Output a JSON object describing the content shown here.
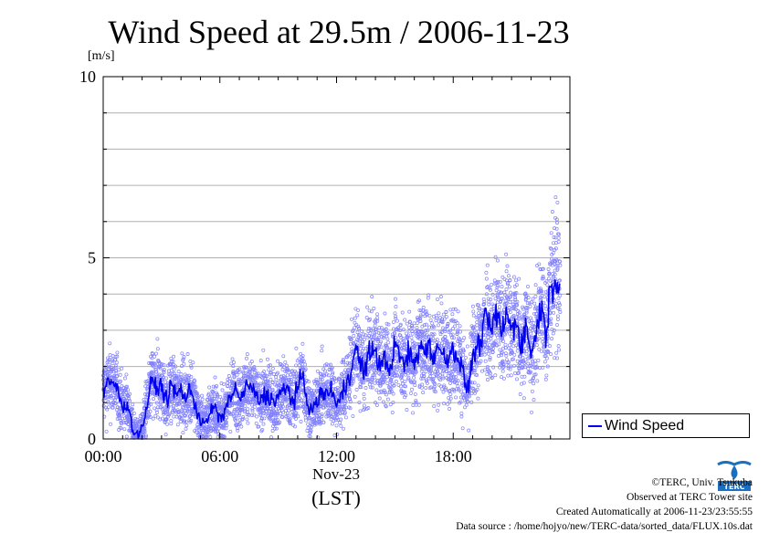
{
  "chart_data": {
    "type": "line",
    "title": "Wind Speed at 29.5m / 2006-11-23",
    "y_unit": "[m/s]",
    "ylim": [
      0,
      10
    ],
    "y_ticks": [
      "0",
      "5",
      "10"
    ],
    "xlim": [
      0,
      24
    ],
    "x_ticks": [
      {
        "v": 0,
        "label": "00:00"
      },
      {
        "v": 6,
        "label": "06:00"
      },
      {
        "v": 12,
        "label": "12:00"
      },
      {
        "v": 18,
        "label": "18:00"
      }
    ],
    "x_date_label": "Nov-23",
    "x_axis_label": "(LST)",
    "grid": true,
    "legend_position": "right",
    "series": [
      {
        "name": "Wind Speed",
        "color": "#0000ee",
        "scatter_color": "#8080ff",
        "x": [
          0,
          0.25,
          0.5,
          0.75,
          1.0,
          1.25,
          1.5,
          1.75,
          2.0,
          2.25,
          2.5,
          2.75,
          3.0,
          3.25,
          3.5,
          3.75,
          4.0,
          4.25,
          4.5,
          4.75,
          5.0,
          5.25,
          5.5,
          5.75,
          6.0,
          6.25,
          6.5,
          6.75,
          7.0,
          7.25,
          7.5,
          7.75,
          8.0,
          8.25,
          8.5,
          8.75,
          9.0,
          9.25,
          9.5,
          9.75,
          10.0,
          10.25,
          10.5,
          10.75,
          11.0,
          11.25,
          11.5,
          11.75,
          12.0,
          12.25,
          12.5,
          12.75,
          13.0,
          13.25,
          13.5,
          13.75,
          14.0,
          14.25,
          14.5,
          14.75,
          15.0,
          15.25,
          15.5,
          15.75,
          16.0,
          16.25,
          16.5,
          16.75,
          17.0,
          17.25,
          17.5,
          17.75,
          18.0,
          18.25,
          18.5,
          18.75,
          19.0,
          19.25,
          19.5,
          19.75,
          20.0,
          20.25,
          20.5,
          20.75,
          21.0,
          21.25,
          21.5,
          21.75,
          22.0,
          22.25,
          22.5,
          22.75,
          23.0,
          23.25,
          23.5
        ],
        "values": [
          1.3,
          1.5,
          1.6,
          1.3,
          0.9,
          1.0,
          0.3,
          0.1,
          0.3,
          0.9,
          1.6,
          1.4,
          1.5,
          1.0,
          1.5,
          1.2,
          1.4,
          1.1,
          1.4,
          0.9,
          0.5,
          0.4,
          0.7,
          0.9,
          0.5,
          0.8,
          1.1,
          1.4,
          1.1,
          1.3,
          1.5,
          1.3,
          1.0,
          1.2,
          1.2,
          1.0,
          1.2,
          1.3,
          1.4,
          1.0,
          1.4,
          1.7,
          1.0,
          0.8,
          1.0,
          1.3,
          1.2,
          1.4,
          0.9,
          1.2,
          1.5,
          2.0,
          2.5,
          2.0,
          1.9,
          2.5,
          2.4,
          2.0,
          2.2,
          1.9,
          2.6,
          2.3,
          2.0,
          2.4,
          2.0,
          2.6,
          2.4,
          2.7,
          2.2,
          2.5,
          2.4,
          2.2,
          2.5,
          2.3,
          1.8,
          1.3,
          2.3,
          2.5,
          2.9,
          3.4,
          2.9,
          3.6,
          2.8,
          3.5,
          3.0,
          3.3,
          2.6,
          3.1,
          2.4,
          2.8,
          3.8,
          2.9,
          4.1,
          4.5,
          4.3
        ]
      }
    ]
  },
  "legend": {
    "label": "Wind Speed"
  },
  "credits": {
    "line1": "©TERC, Univ. Tsukuba",
    "line2": "Observed at TERC Tower site",
    "line3": "Created Automatically at 2006-11-23/23:55:55",
    "line4": "Data source : /home/hojyo/new/TERC-data/sorted_data/FLUX.10s.dat"
  },
  "logo": {
    "text": "TERC",
    "color": "#1a6fc0",
    "icon": "terc-water-drop-logo"
  }
}
